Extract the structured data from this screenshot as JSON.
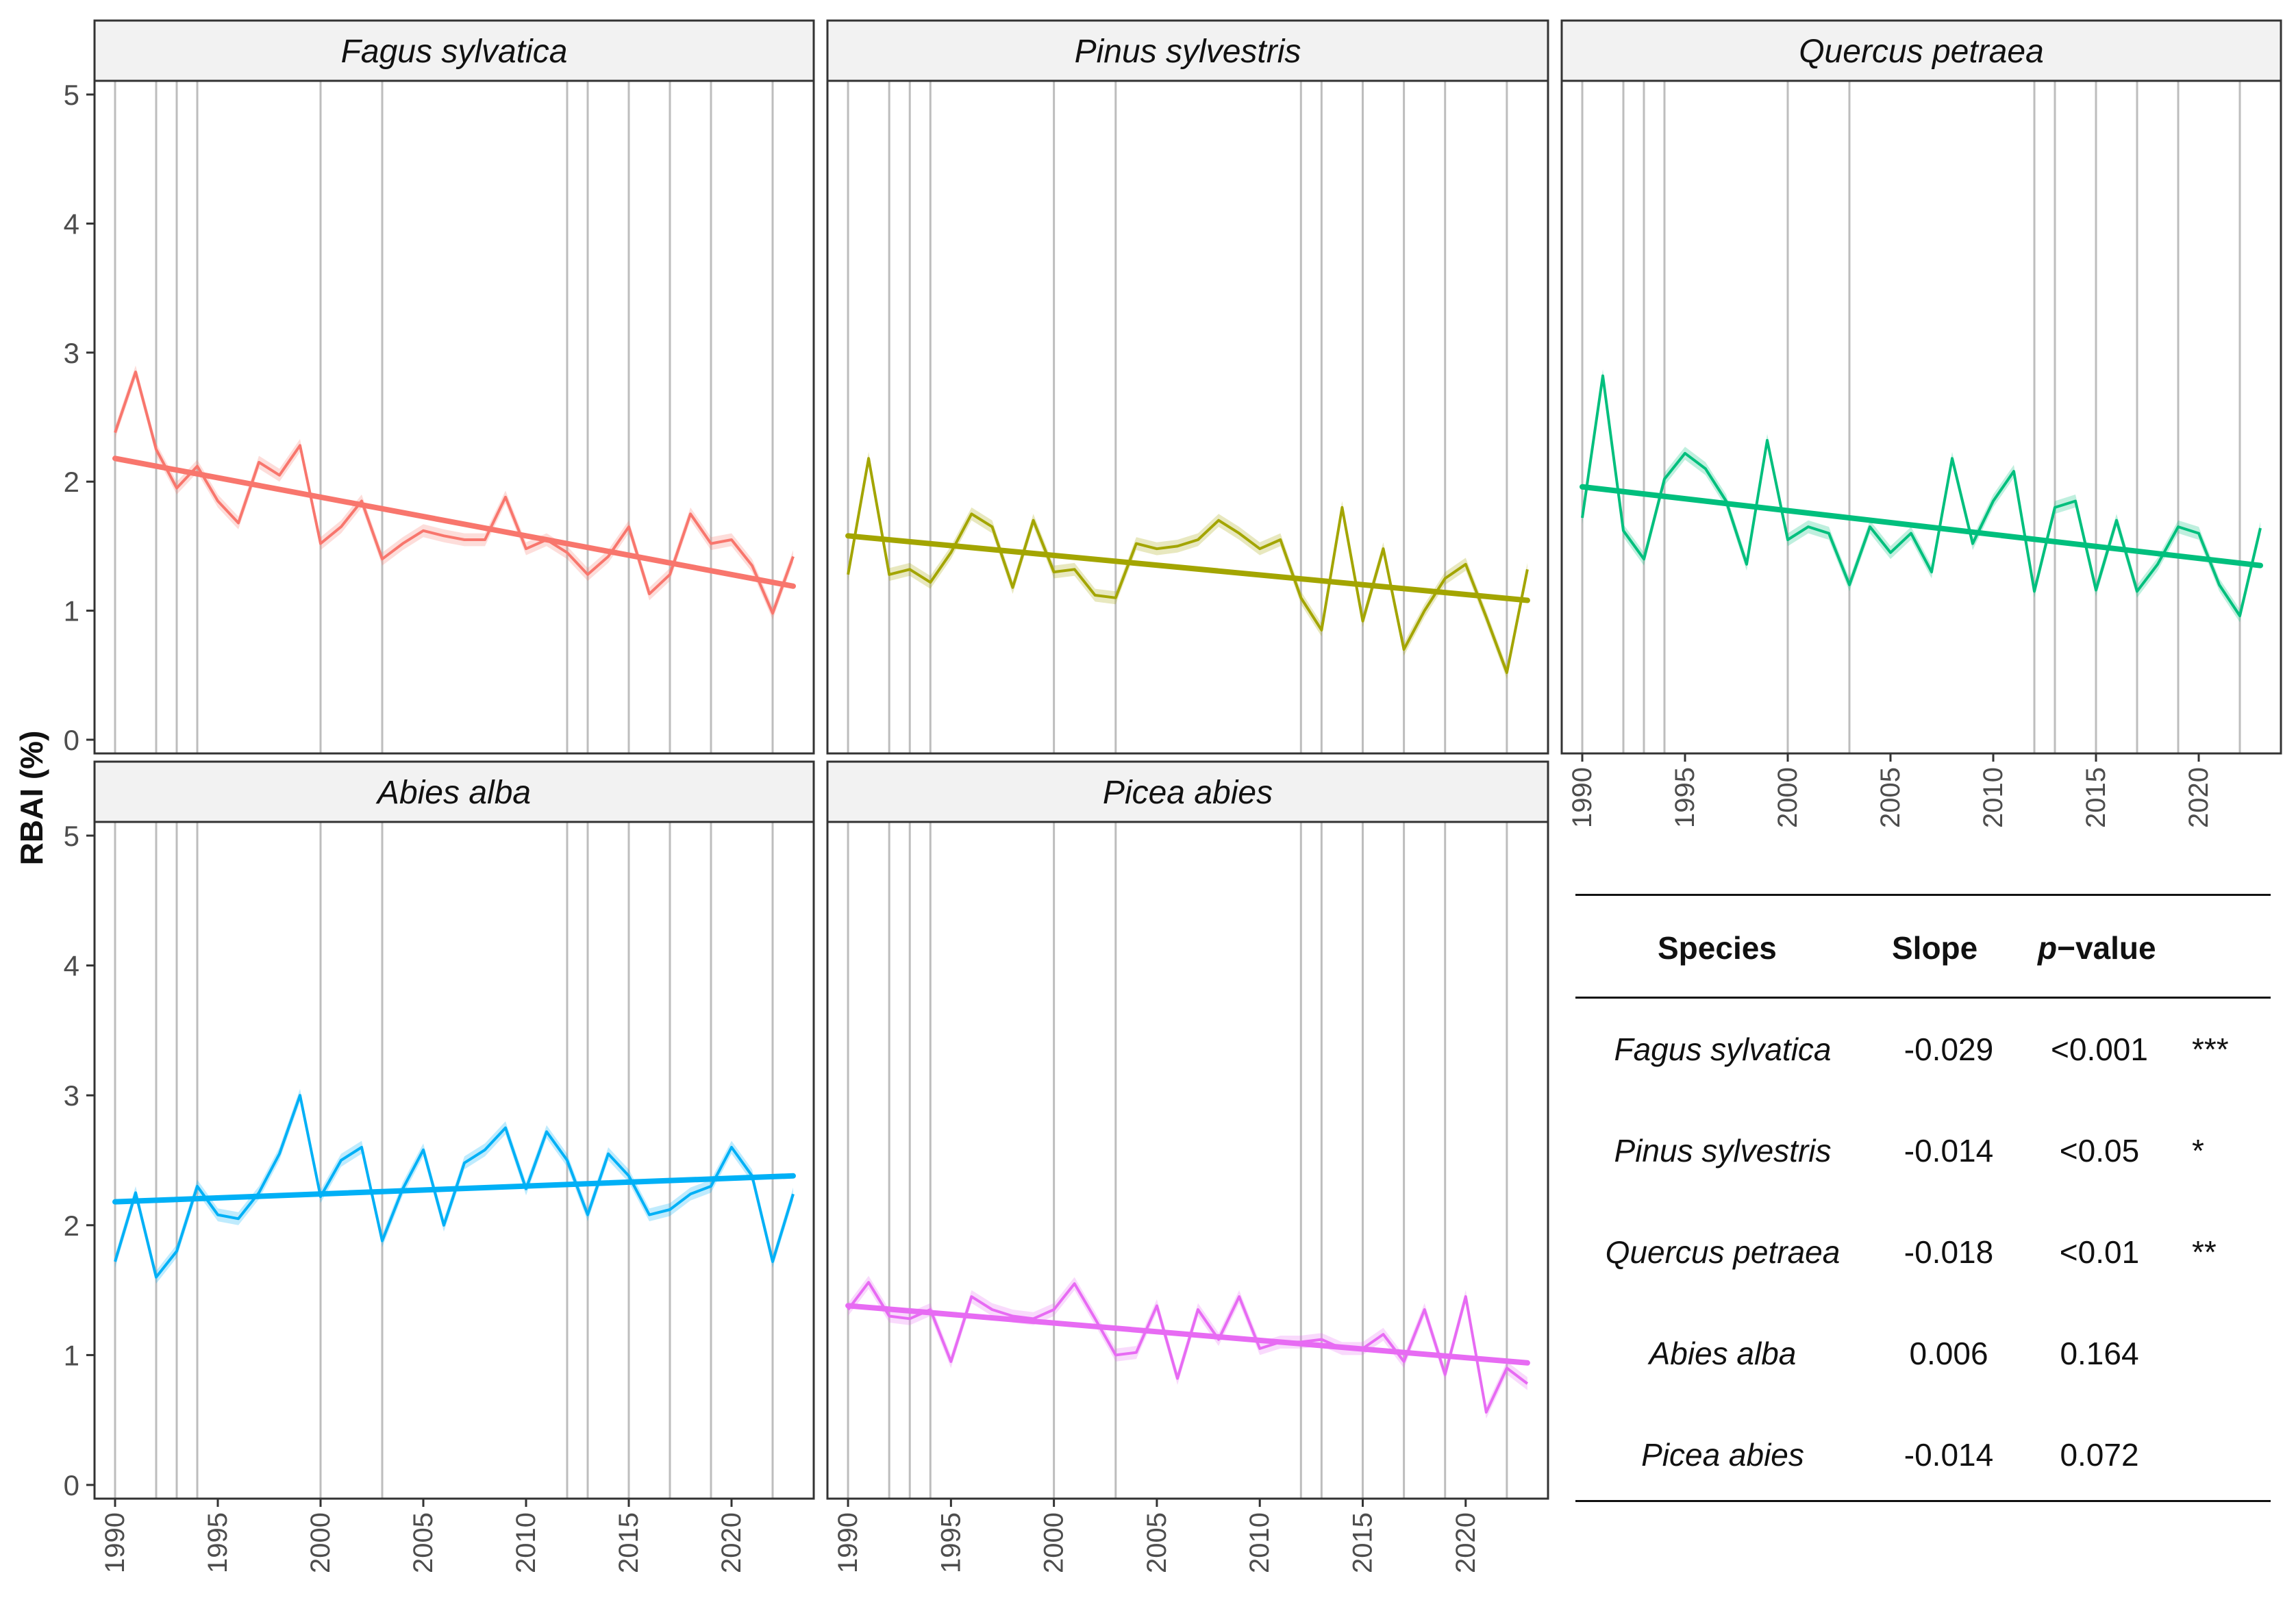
{
  "chart_data": {
    "type": "line",
    "ylabel": "RBAI (%)",
    "ylim": [
      0,
      5
    ],
    "yticks": [
      "0",
      "1",
      "2",
      "3",
      "4",
      "5"
    ],
    "xlim": [
      1989,
      2024
    ],
    "xticks": [
      "1990",
      "1995",
      "2000",
      "2005",
      "2010",
      "2015",
      "2020"
    ],
    "event_years": [
      1990,
      1992,
      1993,
      1994,
      2000,
      2003,
      2012,
      2013,
      2015,
      2017,
      2019,
      2022
    ],
    "years": [
      1990,
      1991,
      1992,
      1993,
      1994,
      1995,
      1996,
      1997,
      1998,
      1999,
      2000,
      2001,
      2002,
      2003,
      2004,
      2005,
      2006,
      2007,
      2008,
      2009,
      2010,
      2011,
      2012,
      2013,
      2014,
      2015,
      2016,
      2017,
      2018,
      2019,
      2020,
      2021,
      2022,
      2023
    ],
    "panels": [
      {
        "species": "Fagus sylvatica",
        "color": "#f8766d",
        "values": [
          2.38,
          2.85,
          2.25,
          1.95,
          2.12,
          1.85,
          1.68,
          2.15,
          2.05,
          2.28,
          1.52,
          1.65,
          1.85,
          1.4,
          1.52,
          1.62,
          1.58,
          1.55,
          1.55,
          1.88,
          1.48,
          1.55,
          1.45,
          1.28,
          1.42,
          1.65,
          1.13,
          1.28,
          1.75,
          1.52,
          1.55,
          1.35,
          0.98,
          1.42
        ],
        "trend": [
          2.18,
          1.19
        ]
      },
      {
        "species": "Pinus sylvestris",
        "color": "#a3a500",
        "values": [
          1.28,
          2.18,
          1.28,
          1.32,
          1.22,
          1.45,
          1.75,
          1.65,
          1.18,
          1.7,
          1.3,
          1.32,
          1.12,
          1.1,
          1.52,
          1.48,
          1.5,
          1.55,
          1.7,
          1.6,
          1.48,
          1.55,
          1.1,
          0.85,
          1.8,
          0.92,
          1.48,
          0.7,
          1.0,
          1.25,
          1.36,
          0.95,
          0.52,
          1.32
        ],
        "trend": [
          1.58,
          1.08
        ]
      },
      {
        "species": "Quercus petraea",
        "color": "#00bf7d",
        "values": [
          1.72,
          2.82,
          1.62,
          1.4,
          2.02,
          2.22,
          2.1,
          1.85,
          1.36,
          2.32,
          1.55,
          1.65,
          1.6,
          1.2,
          1.65,
          1.45,
          1.6,
          1.3,
          2.18,
          1.52,
          1.85,
          2.08,
          1.15,
          1.8,
          1.85,
          1.16,
          1.7,
          1.15,
          1.36,
          1.65,
          1.6,
          1.2,
          0.96,
          1.64
        ],
        "trend": [
          1.96,
          1.35
        ]
      },
      {
        "species": "Abies alba",
        "color": "#00b0f6",
        "values": [
          1.72,
          2.25,
          1.6,
          1.8,
          2.3,
          2.08,
          2.05,
          2.25,
          2.55,
          3.0,
          2.22,
          2.5,
          2.6,
          1.88,
          2.28,
          2.58,
          2.0,
          2.48,
          2.58,
          2.75,
          2.28,
          2.72,
          2.5,
          2.08,
          2.55,
          2.38,
          2.08,
          2.12,
          2.24,
          2.3,
          2.6,
          2.38,
          1.72,
          2.24
        ],
        "trend": [
          2.18,
          2.38
        ]
      },
      {
        "species": "Picea abies",
        "color": "#e76bf3",
        "values": [
          1.35,
          1.56,
          1.3,
          1.28,
          1.35,
          0.95,
          1.45,
          1.35,
          1.3,
          1.28,
          1.35,
          1.55,
          1.28,
          1.0,
          1.02,
          1.38,
          0.82,
          1.35,
          1.12,
          1.45,
          1.05,
          1.1,
          1.1,
          1.12,
          1.05,
          1.05,
          1.16,
          0.95,
          1.35,
          0.85,
          1.45,
          0.56,
          0.9,
          0.78
        ],
        "trend": [
          1.38,
          0.94
        ]
      }
    ]
  },
  "table": {
    "headers": {
      "species": "Species",
      "slope": "Slope",
      "p_italic": "p",
      "p_rest": "−value"
    },
    "rows": [
      {
        "species": "Fagus sylvatica",
        "slope": "-0.029",
        "p": "<0.001",
        "sig": "***"
      },
      {
        "species": "Pinus sylvestris",
        "slope": "-0.014",
        "p": "<0.05",
        "sig": "*"
      },
      {
        "species": "Quercus petraea",
        "slope": "-0.018",
        "p": "<0.01",
        "sig": "**"
      },
      {
        "species": "Abies alba",
        "slope": "0.006",
        "p": "0.164",
        "sig": ""
      },
      {
        "species": "Picea abies",
        "slope": "-0.014",
        "p": "0.072",
        "sig": ""
      }
    ]
  }
}
